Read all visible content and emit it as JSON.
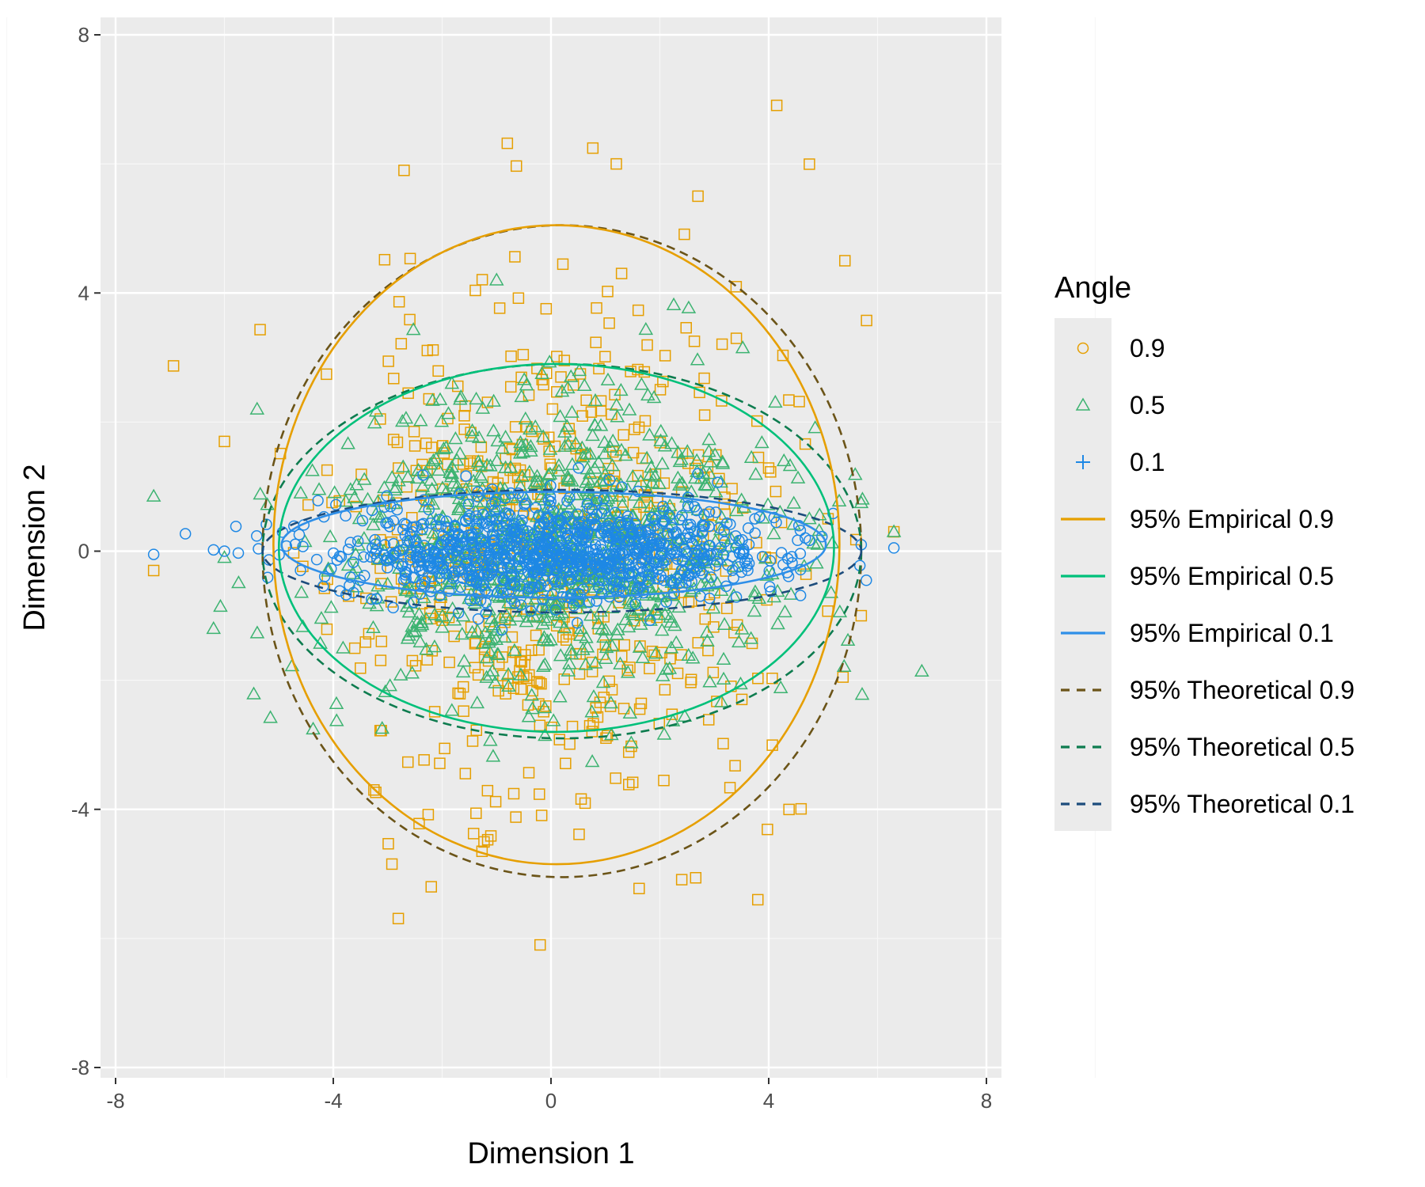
{
  "chart_data": {
    "type": "scatter",
    "xlabel": "Dimension 1",
    "ylabel": "Dimension 2",
    "xlim": [
      -8,
      8
    ],
    "ylim": [
      -8,
      8
    ],
    "x_ticks": [
      -8,
      -4,
      0,
      4,
      8
    ],
    "y_ticks": [
      -8,
      -4,
      0,
      4,
      8
    ],
    "x_tick_labels": [
      "-8",
      "-4",
      "0",
      "4",
      "8"
    ],
    "y_tick_labels": [
      "-8",
      "-4",
      "0",
      "4",
      "8"
    ],
    "grid": true,
    "legend": {
      "title": "Angle",
      "placement": "right",
      "entries": [
        {
          "label": "0.9",
          "kind": "point",
          "shape": "circle",
          "color": "#E69F00"
        },
        {
          "label": "0.5",
          "kind": "point",
          "shape": "triangle",
          "color": "#3CB371"
        },
        {
          "label": "0.1",
          "kind": "point",
          "shape": "plus",
          "color": "#1E88E5"
        },
        {
          "label": "95% Empirical 0.9",
          "kind": "line",
          "dash": "solid",
          "color": "#E69F00"
        },
        {
          "label": "95% Empirical 0.5",
          "kind": "line",
          "dash": "solid",
          "color": "#00C07A"
        },
        {
          "label": "95% Empirical 0.1",
          "kind": "line",
          "dash": "solid",
          "color": "#2F8FE8"
        },
        {
          "label": "95% Theoretical 0.9",
          "kind": "line",
          "dash": "dashed",
          "color": "#6B5418"
        },
        {
          "label": "95% Theoretical 0.5",
          "kind": "line",
          "dash": "dashed",
          "color": "#0E7C4F"
        },
        {
          "label": "95% Theoretical 0.1",
          "kind": "line",
          "dash": "dashed",
          "color": "#1C4C7C"
        }
      ]
    },
    "series": [
      {
        "name": "0.9",
        "marker": "square",
        "color": "#E69F00",
        "n": 600,
        "sd_x": 2.0,
        "sd_y": 2.0,
        "seed": 11,
        "extra_points": [
          [
            -2.7,
            5.9
          ],
          [
            1.2,
            6.0
          ],
          [
            2.7,
            5.5
          ],
          [
            5.4,
            4.5
          ],
          [
            -0.2,
            -6.1
          ],
          [
            3.8,
            -5.4
          ],
          [
            -2.2,
            -5.2
          ],
          [
            -7.3,
            -0.3
          ],
          [
            6.3,
            0.3
          ],
          [
            5.7,
            -1.0
          ],
          [
            -6.0,
            1.7
          ]
        ]
      },
      {
        "name": "0.5",
        "marker": "triangle",
        "color": "#3CB371",
        "n": 900,
        "sd_x": 2.0,
        "sd_y": 1.15,
        "seed": 23,
        "extra_points": [
          [
            -7.3,
            0.85
          ],
          [
            -6.2,
            -1.2
          ],
          [
            -6.0,
            -0.1
          ],
          [
            6.3,
            0.3
          ],
          [
            5.7,
            0.75
          ],
          [
            -5.4,
            2.2
          ],
          [
            -1.0,
            4.2
          ]
        ]
      },
      {
        "name": "0.1",
        "marker": "circle",
        "color": "#1E88E5",
        "n": 1000,
        "sd_x": 2.0,
        "sd_y": 0.38,
        "seed": 37,
        "extra_points": [
          [
            -7.3,
            -0.05
          ],
          [
            -6.2,
            0.02
          ],
          [
            -6.0,
            0.0
          ],
          [
            6.3,
            0.05
          ],
          [
            5.7,
            0.1
          ],
          [
            2.7,
            1.2
          ]
        ]
      }
    ],
    "ellipses": [
      {
        "name": "95% Theoretical 0.9",
        "cx": 0.2,
        "cy": 0.0,
        "rx": 5.5,
        "ry": 5.05,
        "color": "#6B5418",
        "dash": "dashed"
      },
      {
        "name": "95% Theoretical 0.5",
        "cx": 0.2,
        "cy": 0.0,
        "rx": 5.5,
        "ry": 2.9,
        "color": "#0E7C4F",
        "dash": "dashed"
      },
      {
        "name": "95% Theoretical 0.1",
        "cx": 0.2,
        "cy": 0.0,
        "rx": 5.5,
        "ry": 0.95,
        "color": "#1C4C7C",
        "dash": "dashed"
      },
      {
        "name": "95% Empirical 0.9",
        "cx": 0.1,
        "cy": 0.1,
        "rx": 5.2,
        "ry": 4.95,
        "color": "#E69F00",
        "dash": "solid"
      },
      {
        "name": "95% Empirical 0.5",
        "cx": 0.1,
        "cy": 0.05,
        "rx": 5.1,
        "ry": 2.85,
        "color": "#00C07A",
        "dash": "solid"
      },
      {
        "name": "95% Empirical 0.1",
        "cx": 0.05,
        "cy": 0.1,
        "rx": 5.0,
        "ry": 0.82,
        "color": "#2F8FE8",
        "dash": "solid"
      }
    ]
  }
}
